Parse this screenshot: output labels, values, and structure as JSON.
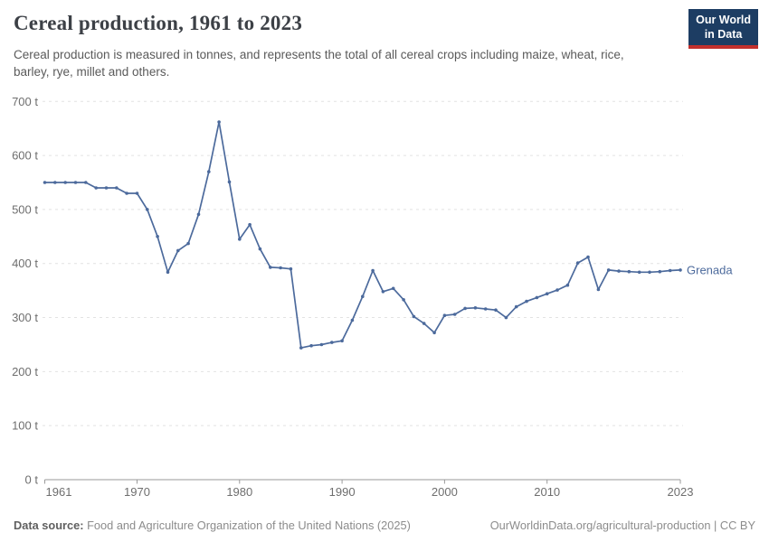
{
  "header": {
    "title": "Cereal production, 1961 to 2023",
    "subtitle": "Cereal production is measured in tonnes, and represents the total of all cereal crops including maize, wheat, rice, barley, rye, millet and others.",
    "logo": {
      "line1": "Our World",
      "line2": "in Data",
      "bg_color": "#1d3d63",
      "stripe_color": "#c2302d"
    }
  },
  "chart_data": {
    "type": "line",
    "title": "Cereal production, 1961 to 2023",
    "unit": "t",
    "xlabel": "",
    "ylabel": "",
    "ylim": [
      0,
      700
    ],
    "grid": "horizontal dashed",
    "legend": "end-of-line entity label",
    "x_ticks": [
      1961,
      1970,
      1980,
      1990,
      2000,
      2010,
      2023
    ],
    "x_tick_labels": [
      "1961",
      "1970",
      "1980",
      "1990",
      "2000",
      "2010",
      "2023"
    ],
    "y_ticks": [
      0,
      100,
      200,
      300,
      400,
      500,
      600,
      700
    ],
    "y_tick_labels": [
      "0 t",
      "100 t",
      "200 t",
      "300 t",
      "400 t",
      "500 t",
      "600 t",
      "700 t"
    ],
    "years": [
      1961,
      1962,
      1963,
      1964,
      1965,
      1966,
      1967,
      1968,
      1969,
      1970,
      1971,
      1972,
      1973,
      1974,
      1975,
      1976,
      1977,
      1978,
      1979,
      1980,
      1981,
      1982,
      1983,
      1984,
      1985,
      1986,
      1987,
      1988,
      1989,
      1990,
      1991,
      1992,
      1993,
      1994,
      1995,
      1996,
      1997,
      1998,
      1999,
      2000,
      2001,
      2002,
      2003,
      2004,
      2005,
      2006,
      2007,
      2008,
      2009,
      2010,
      2011,
      2012,
      2013,
      2014,
      2015,
      2016,
      2017,
      2018,
      2019,
      2020,
      2021,
      2022,
      2023
    ],
    "series": [
      {
        "name": "Grenada",
        "color": "#4c6a9c",
        "values": [
          550,
          550,
          550,
          550,
          550,
          540,
          540,
          540,
          530,
          530,
          500,
          450,
          384,
          424,
          437,
          491,
          570,
          662,
          551,
          445,
          472,
          427,
          393,
          392,
          390,
          244,
          248,
          250,
          254,
          257,
          295,
          339,
          387,
          348,
          354,
          333,
          302,
          289,
          272,
          304,
          306,
          317,
          318,
          316,
          314,
          300,
          320,
          330,
          337,
          344,
          351,
          360,
          401,
          412,
          352,
          388,
          386,
          385,
          384,
          384,
          385,
          387,
          388
        ]
      }
    ]
  },
  "footer": {
    "datasource_label": "Data source:",
    "datasource_value": "Food and Agriculture Organization of the United Nations (2025)",
    "url": "OurWorldinData.org/agricultural-production",
    "separator": "|",
    "license": "CC BY"
  }
}
